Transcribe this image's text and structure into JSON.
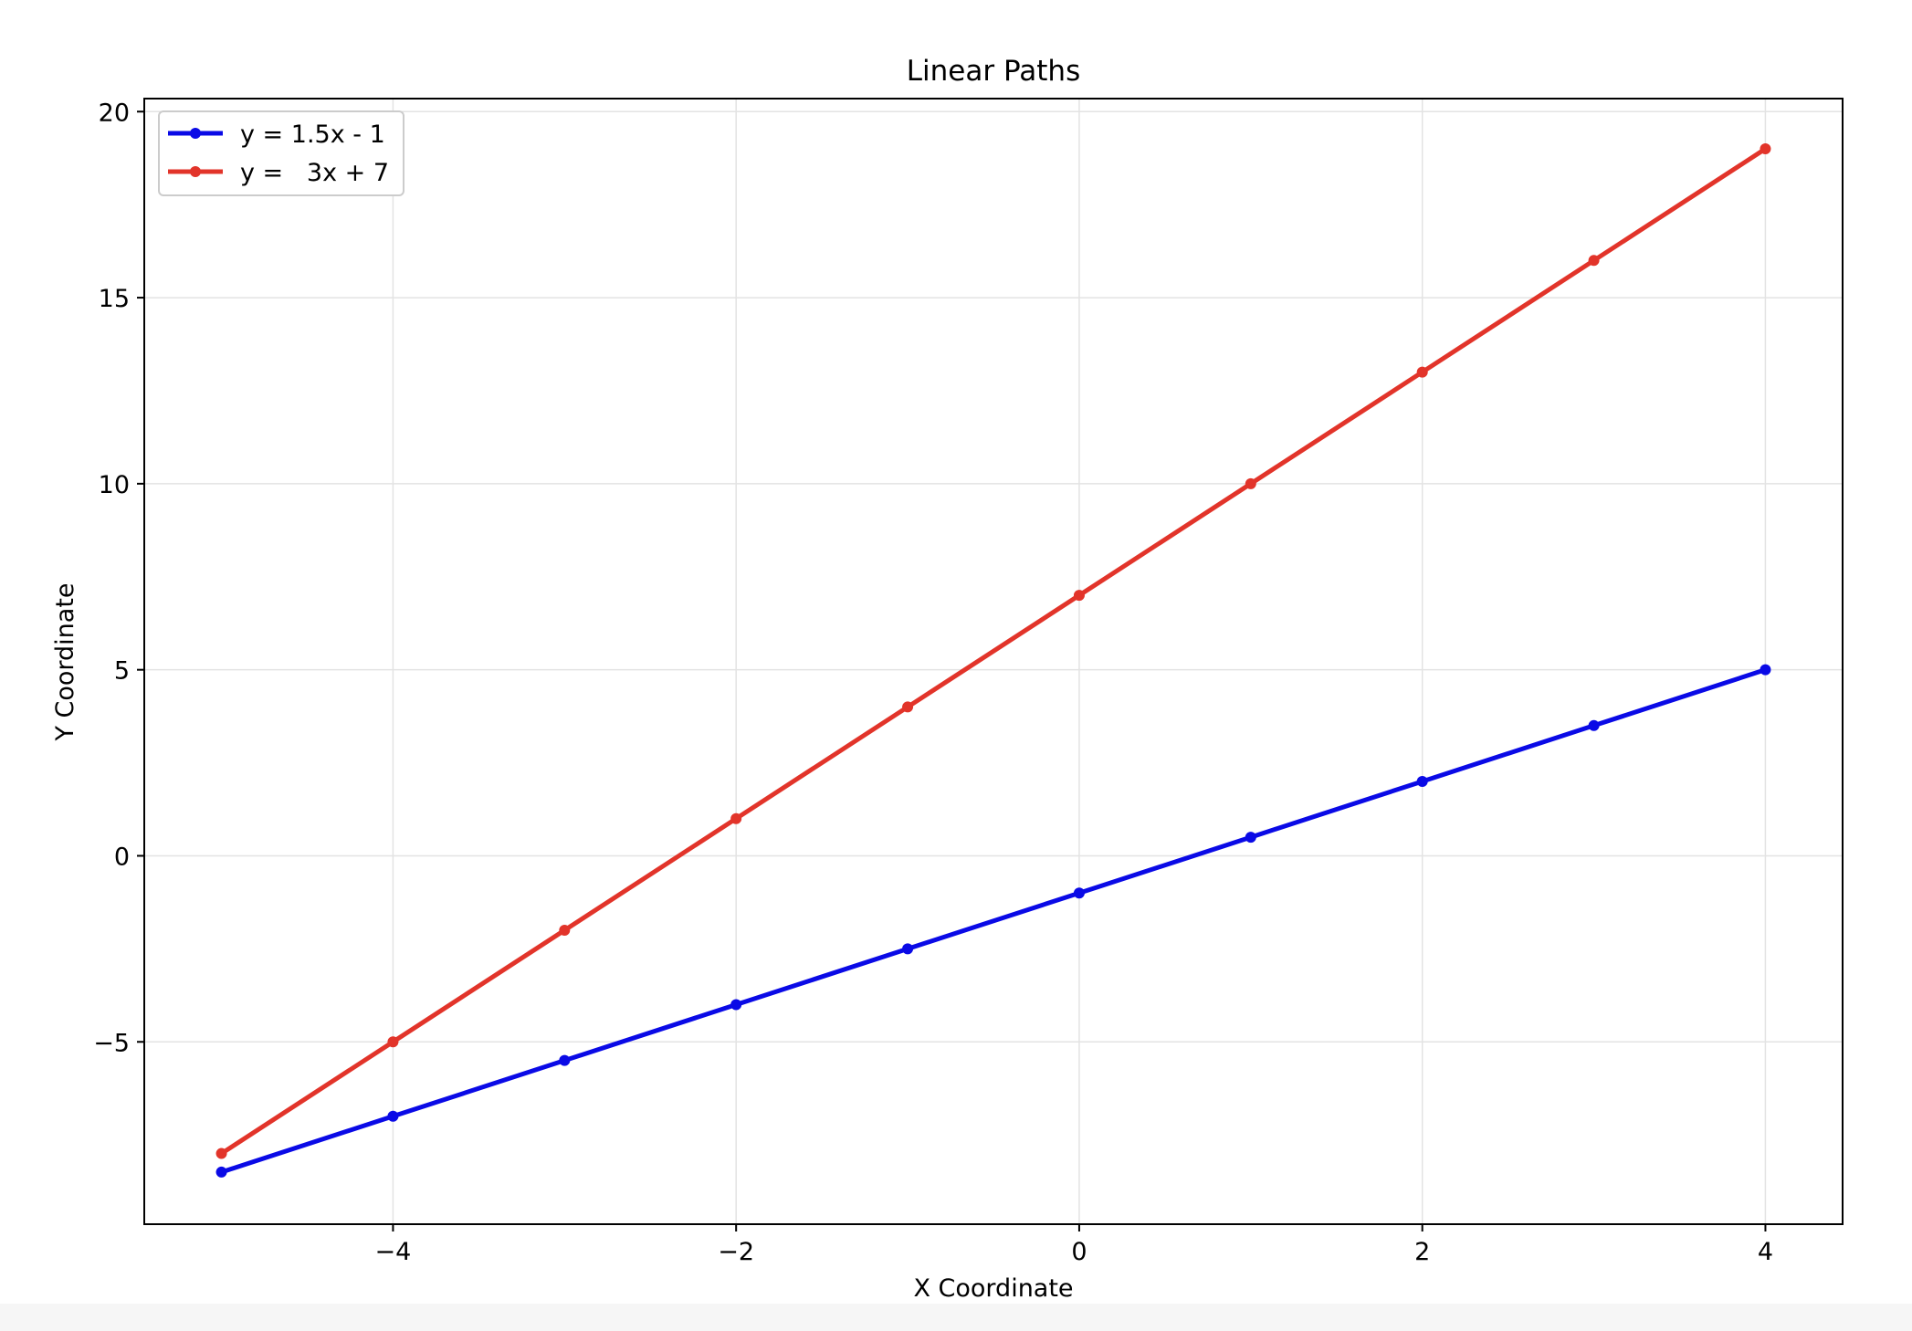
{
  "chart_data": {
    "type": "line",
    "title": "Linear Paths",
    "xlabel": "X Coordinate",
    "ylabel": "Y Coordinate",
    "xlim": [
      -5.45,
      4.45
    ],
    "ylim": [
      -9.9,
      20.35
    ],
    "xticks": [
      -4,
      -2,
      0,
      2,
      4
    ],
    "xtick_labels": [
      "−4",
      "−2",
      "0",
      "2",
      "4"
    ],
    "yticks": [
      -5,
      0,
      5,
      10,
      15,
      20
    ],
    "ytick_labels": [
      "−5",
      "0",
      "5",
      "10",
      "15",
      "20"
    ],
    "grid": true,
    "legend_position": "top-left",
    "x": [
      -5,
      -4,
      -3,
      -2,
      -1,
      0,
      1,
      2,
      3,
      4
    ],
    "series": [
      {
        "name": "y = 1.5x - 1",
        "color": "#0a0ae6",
        "values": [
          -8.5,
          -7,
          -5.5,
          -4,
          -2.5,
          -1,
          0.5,
          2,
          3.5,
          5
        ]
      },
      {
        "name": "y =   3x + 7",
        "color": "#e2342a",
        "values": [
          -8,
          -5,
          -2,
          1,
          4,
          7,
          10,
          13,
          16,
          19
        ]
      }
    ]
  }
}
